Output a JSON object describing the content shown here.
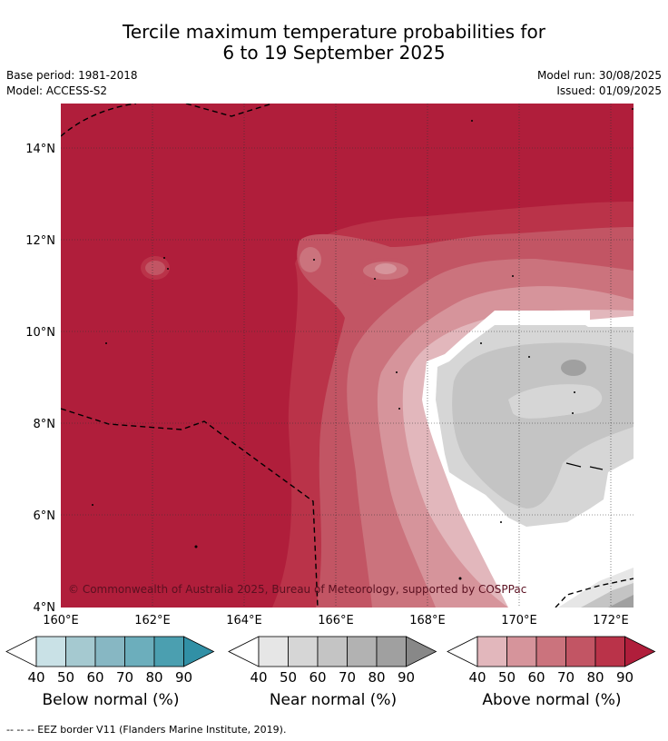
{
  "header": {
    "title_line1": "Tercile maximum temperature probabilities for",
    "title_line2": "6 to 19 September 2025",
    "base_period": "Base period: 1981-2018",
    "model": "Model: ACCESS-S2",
    "model_run": "Model run: 30/08/2025",
    "issued": "Issued: 01/09/2025"
  },
  "map": {
    "lat_labels": [
      "14°N",
      "12°N",
      "10°N",
      "8°N",
      "6°N",
      "4°N"
    ],
    "lon_labels": [
      "160°E",
      "162°E",
      "164°E",
      "166°E",
      "168°E",
      "170°E",
      "172°E"
    ],
    "copyright": "© Commonwealth of Australia 2025, Bureau of Meteorology, supported by COSPPac"
  },
  "colorbars": [
    {
      "label": "Below normal (%)",
      "ticks": [
        "40",
        "50",
        "60",
        "70",
        "80",
        "90"
      ],
      "colors": [
        "#c9e1e6",
        "#a5c9d0",
        "#87b7c3",
        "#6caebc",
        "#4b9fb0",
        "#3190a6"
      ]
    },
    {
      "label": "Near normal (%)",
      "ticks": [
        "40",
        "50",
        "60",
        "70",
        "80",
        "90"
      ],
      "colors": [
        "#e6e6e6",
        "#d6d6d6",
        "#c4c4c4",
        "#b2b2b2",
        "#a0a0a0",
        "#888888"
      ]
    },
    {
      "label": "Above normal (%)",
      "ticks": [
        "40",
        "50",
        "60",
        "70",
        "80",
        "90"
      ],
      "colors": [
        "#e2b7bc",
        "#d6949b",
        "#cb737d",
        "#c25564",
        "#ba3349",
        "#b01e3b"
      ]
    }
  ],
  "footnote": "--  --  -- EEZ border V11 (Flanders Marine Institute, 2019)."
}
